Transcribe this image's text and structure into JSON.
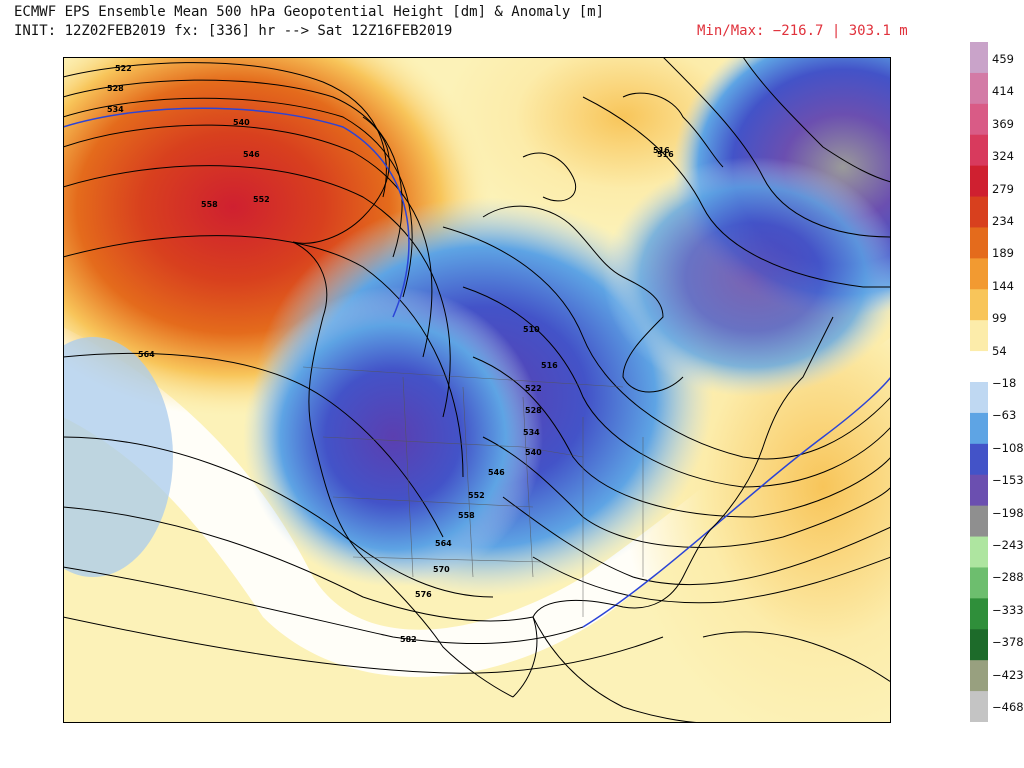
{
  "header": {
    "title_line1": "ECMWF EPS Ensemble Mean 500 hPa Geopotential Height [dm] & Anomaly [m]",
    "title_line2": "INIT: 12Z02FEB2019 fx: [336] hr --> Sat 12Z16FEB2019",
    "minmax": "Min/Max: −216.7 | 303.1 m"
  },
  "contour_labels": [
    "522",
    "528",
    "534",
    "540",
    "546",
    "552",
    "558",
    "564",
    "516",
    "510",
    "516",
    "522",
    "528",
    "534",
    "540",
    "546",
    "552",
    "558",
    "564",
    "570",
    "576",
    "582",
    "516"
  ],
  "colorbar": {
    "labels": [
      "459",
      "414",
      "369",
      "324",
      "279",
      "234",
      "189",
      "144",
      "99",
      "54",
      "−18",
      "−63",
      "−108",
      "−153",
      "−198",
      "−243",
      "−288",
      "−333",
      "−378",
      "−423",
      "−468"
    ],
    "colors": [
      "#c9a3c9",
      "#d37ba6",
      "#d95b86",
      "#d83a5d",
      "#cf2030",
      "#d8401e",
      "#e46b1c",
      "#f29a31",
      "#f8c55a",
      "#fcecaa",
      "#ffffff",
      "#bfd8f2",
      "#5ea4e4",
      "#4353c8",
      "#6b4fb0",
      "#8f8f8f",
      "#aee5a0",
      "#6dbe6e",
      "#2f8f3a",
      "#1d6b2a",
      "#98a07f",
      "#c4c4c4"
    ]
  }
}
